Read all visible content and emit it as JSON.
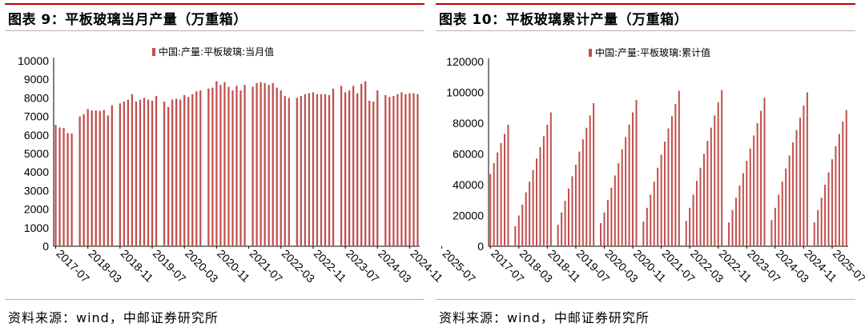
{
  "colors": {
    "bar": "#c0504d",
    "accent": "#c00000"
  },
  "charts": [
    {
      "title": "图表 9：平板玻璃当月产量（万重箱）",
      "source": "资料来源：wind，中邮证券研究所",
      "chart_data": {
        "type": "bar",
        "legend": "中国:产量:平板玻璃:当月值",
        "legend_position": "top-center",
        "ylim": [
          0,
          10000
        ],
        "yticks": [
          "0",
          "1000",
          "2000",
          "3000",
          "4000",
          "5000",
          "6000",
          "7000",
          "8000",
          "9000",
          "10000"
        ],
        "xticks": [
          "2017-07",
          "2018-03",
          "2018-11",
          "2019-07",
          "2020-03",
          "2020-11",
          "2021-07",
          "2022-03",
          "2022-11",
          "2023-07",
          "2024-03",
          "2024-11",
          "2025-07"
        ],
        "start": "2017-07",
        "values": [
          6540,
          6400,
          6380,
          6100,
          6080,
          0,
          7000,
          7120,
          7400,
          7320,
          7320,
          7300,
          7350,
          7050,
          7600,
          0,
          7700,
          7800,
          7900,
          8200,
          7800,
          7900,
          8000,
          7900,
          7850,
          8100,
          0,
          7800,
          7500,
          7900,
          7950,
          7900,
          8150,
          8050,
          8200,
          8350,
          8400,
          0,
          8500,
          8550,
          8900,
          8700,
          8850,
          8600,
          8400,
          8650,
          8400,
          8700,
          0,
          8600,
          8800,
          8850,
          8800,
          8700,
          8800,
          8550,
          8400,
          8100,
          8000,
          0,
          8000,
          8100,
          8200,
          8250,
          8300,
          8200,
          8200,
          8200,
          8150,
          8500,
          0,
          8650,
          8300,
          8400,
          8650,
          8250,
          8750,
          8900,
          7850,
          7800,
          8400,
          0,
          8150,
          8050,
          8100,
          8200,
          8300,
          8200,
          8250,
          8250,
          8200
        ]
      }
    },
    {
      "title": "图表 10：平板玻璃累计产量（万重箱）",
      "source": "资料来源：wind，中邮证券研究所",
      "chart_data": {
        "type": "bar",
        "legend": "中国:产量:平板玻璃:累计值",
        "legend_position": "top-center",
        "ylim": [
          0,
          120000
        ],
        "yticks": [
          "0",
          "20000",
          "40000",
          "60000",
          "80000",
          "100000",
          "120000"
        ],
        "xticks": [
          "2017-07",
          "2018-03",
          "2018-11",
          "2019-07",
          "2020-03",
          "2020-11",
          "2021-07",
          "2022-03",
          "2022-11",
          "2023-07",
          "2024-03",
          "2024-11",
          "2025-07"
        ],
        "start": "2017-07",
        "values": [
          47000,
          54000,
          61000,
          67000,
          73000,
          79000,
          0,
          13000,
          20000,
          27000,
          35000,
          42000,
          49500,
          57000,
          64500,
          71500,
          79000,
          87000,
          0,
          14000,
          22000,
          29500,
          37500,
          45500,
          53000,
          61500,
          69500,
          77000,
          85000,
          93000,
          0,
          15000,
          22000,
          30000,
          38000,
          46000,
          54000,
          63000,
          71000,
          79000,
          87000,
          95000,
          0,
          16000,
          25000,
          33500,
          42000,
          51000,
          59500,
          68000,
          76500,
          84500,
          92500,
          101000,
          0,
          16500,
          25000,
          33500,
          42500,
          51000,
          60000,
          68500,
          77000,
          85000,
          93500,
          101500,
          0,
          15500,
          23500,
          31500,
          39500,
          47500,
          55500,
          63500,
          72000,
          80000,
          88000,
          96500,
          0,
          17000,
          25000,
          33500,
          42000,
          50500,
          59000,
          67500,
          75500,
          83500,
          91500,
          100000,
          0,
          15500,
          23500,
          31500,
          40000,
          48000,
          56500,
          65000,
          73000,
          81000,
          88500
        ]
      }
    }
  ]
}
